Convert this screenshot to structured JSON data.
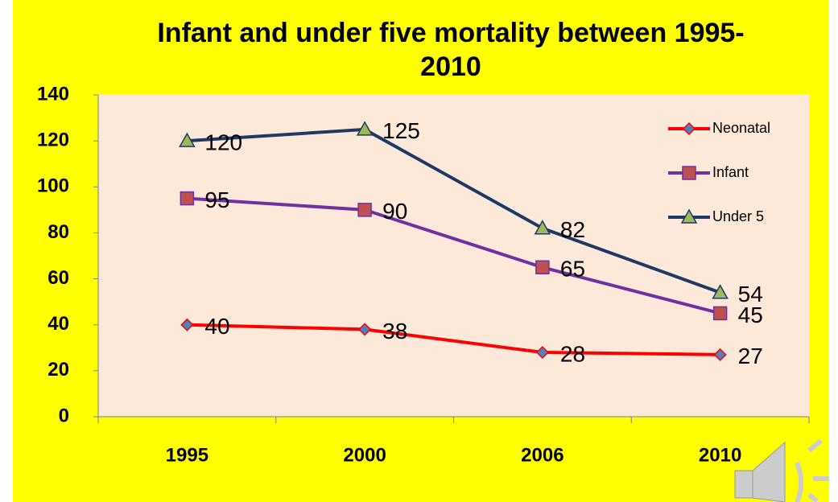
{
  "chart_data": {
    "type": "line",
    "title": "Infant and under five mortality between 1995- 2010",
    "categories": [
      "1995",
      "2000",
      "2006",
      "2010"
    ],
    "series": [
      {
        "name": "Neonatal",
        "color": "#ff0000",
        "marker": "diamond",
        "marker_color": "#4f81bd",
        "values": [
          40,
          38,
          28,
          27
        ]
      },
      {
        "name": "Infant",
        "color": "#7030a0",
        "marker": "square",
        "marker_color": "#c0504d",
        "values": [
          95,
          90,
          65,
          45
        ]
      },
      {
        "name": "Under 5",
        "color": "#1f3864",
        "marker": "triangle",
        "marker_color": "#9bbb59",
        "values": [
          120,
          125,
          82,
          54
        ]
      }
    ],
    "ylim": [
      0,
      140
    ],
    "yticks": [
      0,
      20,
      40,
      60,
      80,
      100,
      120,
      140
    ],
    "grid": false,
    "legend": "upper right"
  }
}
